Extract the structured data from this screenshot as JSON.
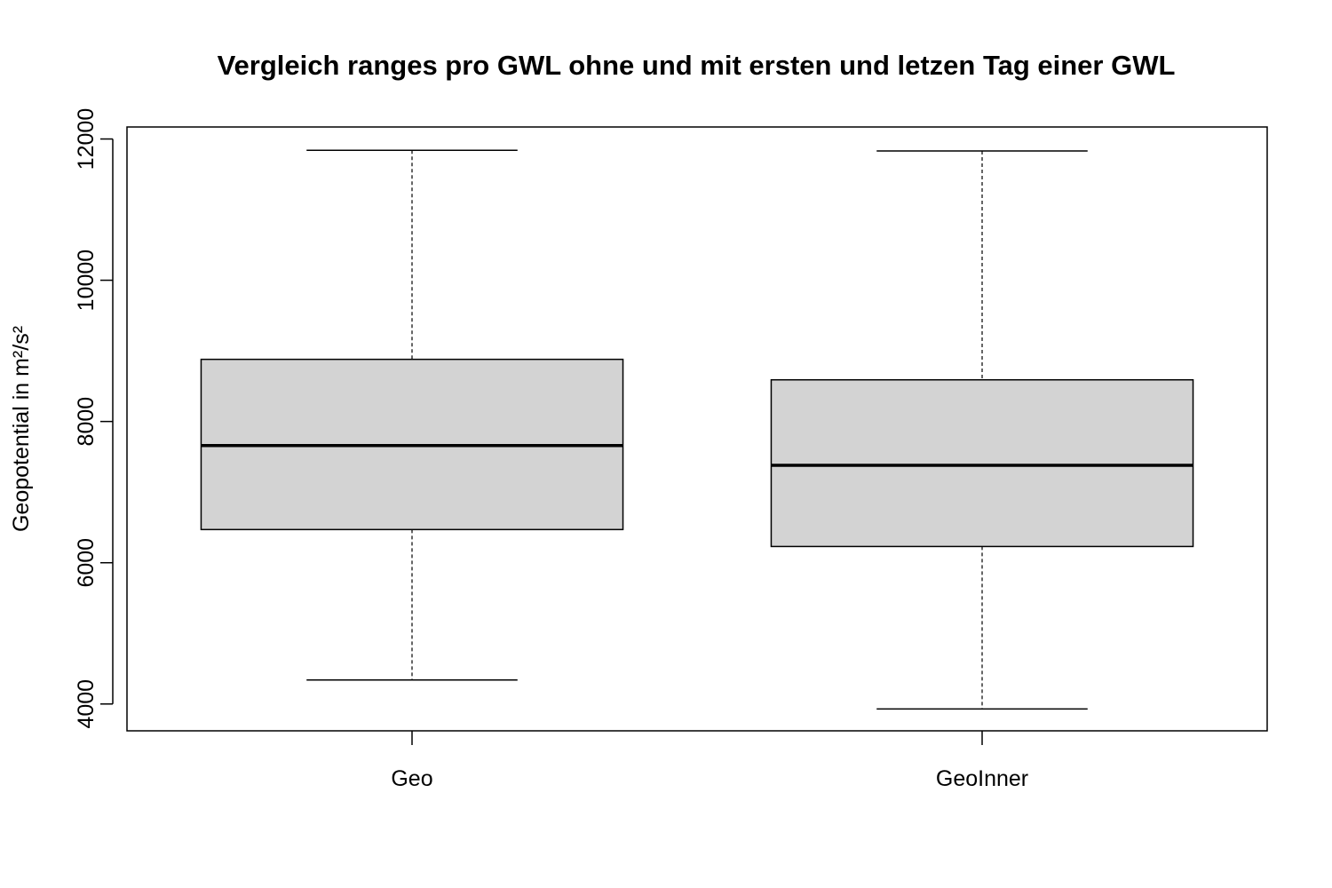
{
  "chart_data": {
    "type": "box",
    "title": "Vergleich ranges pro GWL ohne und mit ersten und letzen Tag einer GWL",
    "xlabel": "",
    "ylabel": "Geopotential in m²/s²",
    "ylim": [
      3620,
      12170
    ],
    "yticks": [
      4000,
      6000,
      8000,
      10000,
      12000
    ],
    "ytick_labels": [
      "4000",
      "6000",
      "8000",
      "10000",
      "12000"
    ],
    "categories": [
      "Geo",
      "GeoInner"
    ],
    "boxes": [
      {
        "name": "Geo",
        "whisker_low": 4340,
        "q1": 6470,
        "median": 7660,
        "q3": 8880,
        "whisker_high": 11840
      },
      {
        "name": "GeoInner",
        "whisker_low": 3930,
        "q1": 6230,
        "median": 7380,
        "q3": 8590,
        "whisker_high": 11830
      }
    ],
    "box_fill": "#d3d3d3",
    "line_color": "#000000",
    "grid": false,
    "legend": "none"
  }
}
